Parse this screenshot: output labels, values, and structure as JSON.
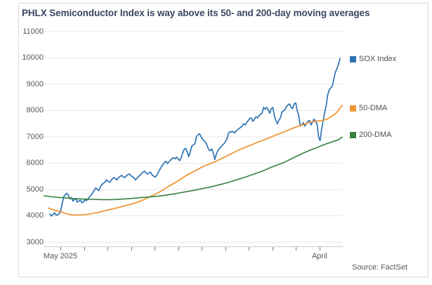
{
  "title": "PHLX Semiconductor Index is way above its 50- and 200-day moving averages",
  "source_note": "Source: FactSet",
  "colors": {
    "title_text": "#3a4662",
    "axis_text": "#58585a",
    "gridline": "#e9e9e9",
    "axis_line": "#c8c8c8",
    "tick_mark": "#7a7a7a",
    "panel_border": "#dcdcdc",
    "background": "#ffffff"
  },
  "chart_data": {
    "type": "line",
    "title": "PHLX Semiconductor Index is way above its 50- and 200-day moving averages",
    "grid": "horizontal",
    "legend_position": "right",
    "y_axis": {
      "min": 3000,
      "max": 11000,
      "tick_step": 1000,
      "tick_labels": [
        "11000",
        "10000",
        "9000",
        "8000",
        "7000",
        "6000",
        "5000",
        "4000",
        "3000"
      ]
    },
    "x_axis": {
      "ticks": [
        {
          "pos": 0.0542,
          "label": "May 2025"
        },
        {
          "pos": 0.1333,
          "label": ""
        },
        {
          "pos": 0.2125,
          "label": ""
        },
        {
          "pos": 0.2915,
          "label": ""
        },
        {
          "pos": 0.3707,
          "label": ""
        },
        {
          "pos": 0.4498,
          "label": ""
        },
        {
          "pos": 0.529,
          "label": ""
        },
        {
          "pos": 0.608,
          "label": ""
        },
        {
          "pos": 0.6873,
          "label": ""
        },
        {
          "pos": 0.7663,
          "label": ""
        },
        {
          "pos": 0.8455,
          "label": ""
        },
        {
          "pos": 0.9245,
          "label": "April"
        }
      ]
    },
    "series": [
      {
        "name": "SOX Index",
        "color": "#2e74b5",
        "line_width": 1.7,
        "x_start": 0.0189,
        "x_end": 0.9929,
        "values": [
          4075,
          3990,
          4050,
          4120,
          4035,
          4030,
          4080,
          4165,
          4450,
          4720,
          4800,
          4860,
          4790,
          4650,
          4700,
          4565,
          4610,
          4655,
          4520,
          4565,
          4590,
          4500,
          4530,
          4610,
          4580,
          4650,
          4720,
          4790,
          4870,
          4965,
          5055,
          5010,
          4965,
          5090,
          5185,
          5240,
          5275,
          5365,
          5320,
          5275,
          5340,
          5410,
          5455,
          5410,
          5365,
          5460,
          5500,
          5540,
          5480,
          5455,
          5515,
          5560,
          5590,
          5540,
          5480,
          5455,
          5365,
          5420,
          5500,
          5540,
          5605,
          5660,
          5695,
          5630,
          5590,
          5640,
          5660,
          5550,
          5515,
          5470,
          5540,
          5650,
          5765,
          5870,
          5940,
          6030,
          6075,
          5990,
          6060,
          6120,
          6175,
          6210,
          6165,
          6230,
          6165,
          6100,
          6210,
          6390,
          6530,
          6565,
          6420,
          6255,
          6440,
          6655,
          6700,
          6740,
          7010,
          7080,
          7115,
          7010,
          6920,
          6840,
          6800,
          6660,
          6520,
          6475,
          6545,
          6390,
          6140,
          6340,
          6475,
          6565,
          6620,
          6680,
          6740,
          6830,
          6920,
          7140,
          7200,
          7185,
          7205,
          7150,
          7230,
          7275,
          7320,
          7365,
          7410,
          7500,
          7455,
          7550,
          7630,
          7700,
          7720,
          7590,
          7675,
          7765,
          7720,
          7810,
          7855,
          7900,
          8120,
          8050,
          8120,
          8030,
          7900,
          8075,
          8120,
          7810,
          7630,
          7500,
          7630,
          7720,
          7940,
          7990,
          8030,
          8165,
          8210,
          8253,
          8120,
          8075,
          8253,
          8290,
          8000,
          7810,
          7420,
          7453,
          7541,
          7410,
          7500,
          7590,
          7630,
          7455,
          7560,
          7675,
          7590,
          7490,
          7000,
          6860,
          7300,
          7615,
          7935,
          8200,
          8600,
          8790,
          8870,
          8920,
          9215,
          9455,
          9590,
          9750,
          9980
        ]
      },
      {
        "name": "50-DMA",
        "color": "#f0973b",
        "line_width": 1.8,
        "points": [
          [
            0.0142,
            4300
          ],
          [
            0.0354,
            4210
          ],
          [
            0.0542,
            4165
          ],
          [
            0.0755,
            4075
          ],
          [
            0.0943,
            4035
          ],
          [
            0.1156,
            4030
          ],
          [
            0.1462,
            4055
          ],
          [
            0.184,
            4140
          ],
          [
            0.2052,
            4200
          ],
          [
            0.2241,
            4250
          ],
          [
            0.2429,
            4300
          ],
          [
            0.2642,
            4360
          ],
          [
            0.283,
            4420
          ],
          [
            0.3019,
            4475
          ],
          [
            0.3231,
            4560
          ],
          [
            0.342,
            4655
          ],
          [
            0.3608,
            4760
          ],
          [
            0.3821,
            4875
          ],
          [
            0.4009,
            5000
          ],
          [
            0.4198,
            5140
          ],
          [
            0.441,
            5270
          ],
          [
            0.4599,
            5410
          ],
          [
            0.4788,
            5545
          ],
          [
            0.5,
            5675
          ],
          [
            0.5189,
            5790
          ],
          [
            0.5377,
            5900
          ],
          [
            0.559,
            5990
          ],
          [
            0.5778,
            6075
          ],
          [
            0.5967,
            6190
          ],
          [
            0.6179,
            6300
          ],
          [
            0.6368,
            6410
          ],
          [
            0.6557,
            6520
          ],
          [
            0.6769,
            6610
          ],
          [
            0.6958,
            6700
          ],
          [
            0.7146,
            6790
          ],
          [
            0.7358,
            6875
          ],
          [
            0.7547,
            6965
          ],
          [
            0.7736,
            7055
          ],
          [
            0.7948,
            7145
          ],
          [
            0.8137,
            7230
          ],
          [
            0.8325,
            7320
          ],
          [
            0.8538,
            7410
          ],
          [
            0.8726,
            7480
          ],
          [
            0.8915,
            7555
          ],
          [
            0.9127,
            7595
          ],
          [
            0.9316,
            7615
          ],
          [
            0.9505,
            7680
          ],
          [
            0.9717,
            7830
          ],
          [
            0.9835,
            7950
          ],
          [
            1.0,
            8200
          ]
        ]
      },
      {
        "name": "200-DMA",
        "color": "#37803d",
        "line_width": 1.6,
        "points": [
          [
            0.0,
            4760
          ],
          [
            0.0283,
            4720
          ],
          [
            0.0542,
            4695
          ],
          [
            0.0873,
            4665
          ],
          [
            0.1156,
            4645
          ],
          [
            0.1462,
            4632
          ],
          [
            0.1745,
            4622
          ],
          [
            0.2052,
            4615
          ],
          [
            0.2335,
            4618
          ],
          [
            0.2642,
            4638
          ],
          [
            0.2925,
            4662
          ],
          [
            0.3231,
            4690
          ],
          [
            0.3514,
            4718
          ],
          [
            0.3821,
            4748
          ],
          [
            0.4104,
            4790
          ],
          [
            0.441,
            4845
          ],
          [
            0.4693,
            4905
          ],
          [
            0.5,
            4965
          ],
          [
            0.5283,
            5030
          ],
          [
            0.559,
            5100
          ],
          [
            0.5873,
            5178
          ],
          [
            0.6179,
            5270
          ],
          [
            0.6462,
            5370
          ],
          [
            0.6769,
            5478
          ],
          [
            0.7052,
            5592
          ],
          [
            0.7358,
            5715
          ],
          [
            0.7641,
            5855
          ],
          [
            0.7948,
            5985
          ],
          [
            0.8137,
            6075
          ],
          [
            0.8443,
            6250
          ],
          [
            0.8726,
            6400
          ],
          [
            0.8915,
            6490
          ],
          [
            0.9127,
            6580
          ],
          [
            0.9316,
            6668
          ],
          [
            0.9505,
            6750
          ],
          [
            0.9717,
            6832
          ],
          [
            0.9858,
            6882
          ],
          [
            1.0,
            6990
          ]
        ]
      }
    ]
  }
}
